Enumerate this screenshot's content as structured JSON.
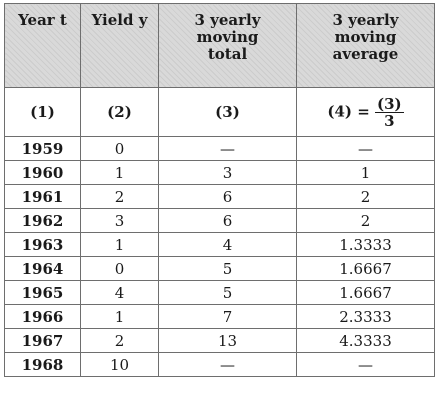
{
  "headers": {
    "col1": [
      "Year t"
    ],
    "col2": [
      "Yield y"
    ],
    "col3": [
      "3 yearly",
      "moving",
      "total"
    ],
    "col4": [
      "3 yearly",
      "moving",
      "average"
    ]
  },
  "numbers": {
    "col1": "(1)",
    "col2": "(2)",
    "col3": "(3)",
    "col4_prefix": "(4) =",
    "col4_num": "(3)",
    "col4_den": "3"
  },
  "rows": [
    {
      "year": "1959",
      "yield": "0",
      "total": "—",
      "average": "—"
    },
    {
      "year": "1960",
      "yield": "1",
      "total": "3",
      "average": "1"
    },
    {
      "year": "1961",
      "yield": "2",
      "total": "6",
      "average": "2"
    },
    {
      "year": "1962",
      "yield": "3",
      "total": "6",
      "average": "2"
    },
    {
      "year": "1963",
      "yield": "1",
      "total": "4",
      "average": "1.3333"
    },
    {
      "year": "1964",
      "yield": "0",
      "total": "5",
      "average": "1.6667"
    },
    {
      "year": "1965",
      "yield": "4",
      "total": "5",
      "average": "1.6667"
    },
    {
      "year": "1966",
      "yield": "1",
      "total": "7",
      "average": "2.3333"
    },
    {
      "year": "1967",
      "yield": "2",
      "total": "13",
      "average": "4.3333"
    },
    {
      "year": "1968",
      "yield": "10",
      "total": "—",
      "average": "—"
    }
  ]
}
